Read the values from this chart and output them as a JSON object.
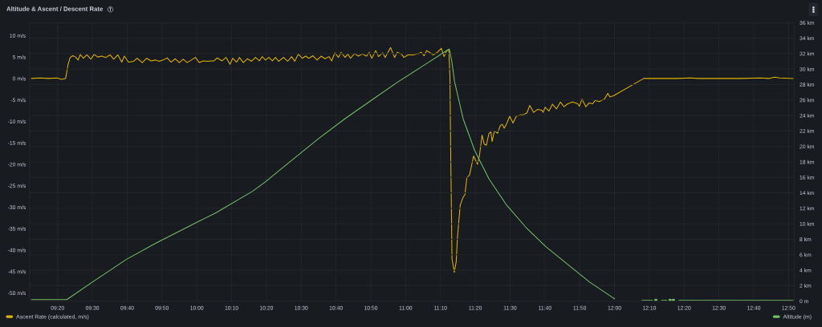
{
  "chart_data": {
    "type": "line",
    "title": "Altitude & Ascent / Descent Rate",
    "xlim": [
      9.2,
      12.86
    ],
    "xticks": [
      {
        "value": 9.33333,
        "label": "09:20"
      },
      {
        "value": 9.5,
        "label": "09:30"
      },
      {
        "value": 9.66667,
        "label": "09:40"
      },
      {
        "value": 9.83333,
        "label": "09:50"
      },
      {
        "value": 10,
        "label": "10:00"
      },
      {
        "value": 10.16667,
        "label": "10:10"
      },
      {
        "value": 10.33333,
        "label": "10:20"
      },
      {
        "value": 10.5,
        "label": "10:30"
      },
      {
        "value": 10.66667,
        "label": "10:40"
      },
      {
        "value": 10.83333,
        "label": "10:50"
      },
      {
        "value": 11,
        "label": "11:00"
      },
      {
        "value": 11.16667,
        "label": "11:10"
      },
      {
        "value": 11.33333,
        "label": "11:20"
      },
      {
        "value": 11.5,
        "label": "11:30"
      },
      {
        "value": 11.66667,
        "label": "11:40"
      },
      {
        "value": 11.83333,
        "label": "11:50"
      },
      {
        "value": 12,
        "label": "12:00"
      },
      {
        "value": 12.16667,
        "label": "12:10"
      },
      {
        "value": 12.33333,
        "label": "12:20"
      },
      {
        "value": 12.5,
        "label": "12:30"
      },
      {
        "value": 12.66667,
        "label": "12:40"
      },
      {
        "value": 12.83333,
        "label": "12:50"
      }
    ],
    "ylim": [
      -51.9,
      13
    ],
    "yticks": [
      {
        "value": 10,
        "label": "10 m/s"
      },
      {
        "value": 5,
        "label": "5 m/s"
      },
      {
        "value": 0,
        "label": "0 m/s"
      },
      {
        "value": -5,
        "label": "-5 m/s"
      },
      {
        "value": -10,
        "label": "-10 m/s"
      },
      {
        "value": -15,
        "label": "-15 m/s"
      },
      {
        "value": -20,
        "label": "-20 m/s"
      },
      {
        "value": -25,
        "label": "-25 m/s"
      },
      {
        "value": -30,
        "label": "-30 m/s"
      },
      {
        "value": -35,
        "label": "-35 m/s"
      },
      {
        "value": -40,
        "label": "-40 m/s"
      },
      {
        "value": -45,
        "label": "-45 m/s"
      },
      {
        "value": -50,
        "label": "-50 m/s"
      }
    ],
    "y2lim": [
      0,
      36
    ],
    "y2ticks": [
      {
        "value": 0,
        "label": "0 m"
      },
      {
        "value": 2,
        "label": "2 km"
      },
      {
        "value": 4,
        "label": "4 km"
      },
      {
        "value": 6,
        "label": "6 km"
      },
      {
        "value": 8,
        "label": "8 km"
      },
      {
        "value": 10,
        "label": "10 km"
      },
      {
        "value": 12,
        "label": "12 km"
      },
      {
        "value": 14,
        "label": "14 km"
      },
      {
        "value": 16,
        "label": "16 km"
      },
      {
        "value": 18,
        "label": "18 km"
      },
      {
        "value": 20,
        "label": "20 km"
      },
      {
        "value": 22,
        "label": "22 km"
      },
      {
        "value": 24,
        "label": "24 km"
      },
      {
        "value": 26,
        "label": "26 km"
      },
      {
        "value": 28,
        "label": "28 km"
      },
      {
        "value": 30,
        "label": "30 km"
      },
      {
        "value": 32,
        "label": "32 km"
      },
      {
        "value": 34,
        "label": "34 km"
      },
      {
        "value": 36,
        "label": "36 km"
      }
    ],
    "grid": true,
    "legend": "bottom",
    "series": [
      {
        "name": "Ascent Rate (calculated, m/s)",
        "color": "#e0b400",
        "x": [
          9.209,
          9.25,
          9.29,
          9.33,
          9.353,
          9.372,
          9.384,
          9.393,
          9.406,
          9.419,
          9.432,
          9.442,
          9.457,
          9.474,
          9.493,
          9.509,
          9.525,
          9.545,
          9.564,
          9.585,
          9.602,
          9.622,
          9.641,
          9.653,
          9.673,
          9.698,
          9.714,
          9.739,
          9.76,
          9.781,
          9.803,
          9.82,
          9.839,
          9.858,
          9.877,
          9.897,
          9.916,
          9.935,
          9.954,
          9.974,
          9.993,
          10.012,
          10.031,
          10.05,
          10.07,
          10.083,
          10.098,
          10.121,
          10.14,
          10.159,
          10.172,
          10.191,
          10.204,
          10.223,
          10.242,
          10.262,
          10.281,
          10.3,
          10.313,
          10.329,
          10.345,
          10.362,
          10.377,
          10.392,
          10.415,
          10.435,
          10.454,
          10.469,
          10.486,
          10.505,
          10.521,
          10.537,
          10.556,
          10.576,
          10.595,
          10.614,
          10.633,
          10.646,
          10.661,
          10.678,
          10.691,
          10.71,
          10.723,
          10.736,
          10.755,
          10.774,
          10.793,
          10.813,
          10.825,
          10.838,
          10.857,
          10.87,
          10.89,
          10.902,
          10.928,
          10.947,
          10.96,
          10.979,
          10.992,
          11.011,
          11.037,
          11.062,
          11.075,
          11.088,
          11.101,
          11.117,
          11.133,
          11.152,
          11.171,
          11.184,
          11.197,
          11.207,
          11.212,
          11.216,
          11.222,
          11.233,
          11.242,
          11.248,
          11.261,
          11.274,
          11.284,
          11.293,
          11.306,
          11.325,
          11.344,
          11.353,
          11.366,
          11.376,
          11.386,
          11.399,
          11.408,
          11.414,
          11.425,
          11.44,
          11.453,
          11.463,
          11.472,
          11.485,
          11.498,
          11.514,
          11.53,
          11.549,
          11.562,
          11.581,
          11.594,
          11.613,
          11.632,
          11.652,
          11.658,
          11.668,
          11.686,
          11.703,
          11.722,
          11.741,
          11.758,
          11.776,
          11.799,
          11.824,
          11.832,
          11.844,
          11.863,
          11.878,
          11.895,
          11.908,
          11.927,
          11.952,
          11.968,
          11.978,
          11.997,
          12.14,
          12.3,
          12.362,
          12.4,
          12.6,
          12.7,
          12.74,
          12.766,
          12.79,
          12.855
        ],
        "values": [
          0,
          0.1,
          0,
          0.1,
          -0.2,
          0,
          3.3,
          4.8,
          5.3,
          5.0,
          4.3,
          5.6,
          4.7,
          5.5,
          4.5,
          5.6,
          5.0,
          5.2,
          4.9,
          5.5,
          4.5,
          5.5,
          3.8,
          5.2,
          3.8,
          4.0,
          4.7,
          3.7,
          4.7,
          4.1,
          4.3,
          4.0,
          4.3,
          4.8,
          3.8,
          4.6,
          3.7,
          4.5,
          3.7,
          4.3,
          4.9,
          3.7,
          4.1,
          4.0,
          4.1,
          4.1,
          4.8,
          4.1,
          4.9,
          3.3,
          4.7,
          3.8,
          4.9,
          3.7,
          4.6,
          4.0,
          4.9,
          4.1,
          5.1,
          4.3,
          4.9,
          4.1,
          4.9,
          4.0,
          4.9,
          4.0,
          5.1,
          4.0,
          5.7,
          4.7,
          5.2,
          4.7,
          5.3,
          4.3,
          5.2,
          4.6,
          5.1,
          4.1,
          6.0,
          4.9,
          6.1,
          4.9,
          5.7,
          4.7,
          5.8,
          5.2,
          5.7,
          5.2,
          6.1,
          4.7,
          6.5,
          5.1,
          6.0,
          4.9,
          7.2,
          4.9,
          6.1,
          5.7,
          4.9,
          5.5,
          5.5,
          5.8,
          6.1,
          5.3,
          6.5,
          6.0,
          5.5,
          6.1,
          7.0,
          5.1,
          6.5,
          6.6,
          0.2,
          -18.4,
          -42.1,
          -45.2,
          -42.7,
          -37.1,
          -29.6,
          -27.8,
          -27.0,
          -23.1,
          -22.5,
          -18.1,
          -20.0,
          -18.1,
          -13.2,
          -15.3,
          -15.6,
          -12.8,
          -12.5,
          -14.7,
          -12.2,
          -12.8,
          -11.0,
          -10.7,
          -11.6,
          -10.4,
          -8.8,
          -10.4,
          -8.8,
          -8.5,
          -8.5,
          -8.0,
          -6.3,
          -7.9,
          -7.2,
          -7.4,
          -7.9,
          -6.7,
          -7.6,
          -6.0,
          -7.1,
          -5.5,
          -6.6,
          -5.9,
          -5.5,
          -5.9,
          -6.5,
          -4.8,
          -6.6,
          -5.7,
          -5.9,
          -5.1,
          -5.4,
          -4.8,
          -3.5,
          -4.3,
          -4.0,
          0,
          0,
          0.1,
          0,
          0,
          0.1,
          0,
          0.3,
          0.1,
          0
        ]
      },
      {
        "name": "Altitude (m)",
        "color": "#73bf69",
        "axis": "y2",
        "x": [
          9.209,
          9.378,
          9.502,
          9.663,
          9.805,
          10.001,
          10.09,
          10.267,
          10.327,
          10.454,
          10.582,
          10.71,
          10.838,
          10.966,
          11.094,
          11.197,
          11.209,
          11.221,
          11.234,
          11.275,
          11.33,
          11.399,
          11.481,
          11.577,
          11.673,
          11.783,
          11.879,
          11.989,
          12.0,
          12.066,
          12.132,
          12.181,
          12.19,
          12.198,
          12.212,
          12.225,
          12.25,
          12.258,
          12.266,
          12.274,
          12.282,
          12.295,
          12.309,
          12.6,
          12.74,
          12.855
        ],
        "values": [
          0.2,
          0.2,
          2.5,
          5.4,
          7.5,
          10.2,
          11.4,
          14.2,
          15.4,
          18.2,
          21.0,
          23.6,
          26.0,
          28.4,
          30.6,
          32.4,
          32.6,
          31.0,
          28.4,
          23.6,
          19.5,
          15.8,
          12.5,
          9.5,
          7.0,
          4.6,
          2.5,
          0.5,
          0.3,
          null,
          0.1,
          0.1,
          null,
          0.1,
          null,
          0.1,
          0.1,
          null,
          0.1,
          null,
          0.1,
          null,
          0.1,
          0.1,
          0.1,
          0.1
        ]
      }
    ]
  }
}
